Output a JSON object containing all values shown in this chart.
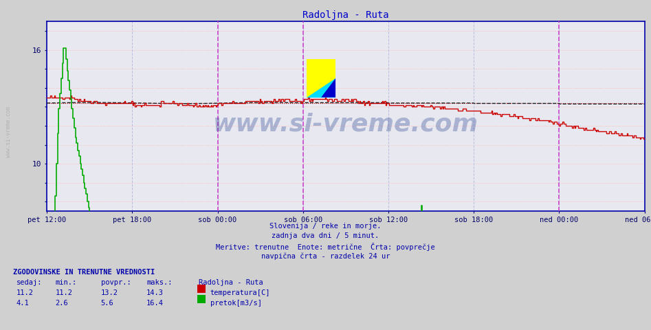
{
  "title": "Radoljna - Ruta",
  "title_color": "#0000cc",
  "bg_color": "#d0d0d0",
  "plot_bg_color": "#e8e8f0",
  "x_tick_labels": [
    "pet 12:00",
    "pet 18:00",
    "sob 00:00",
    "sob 06:00",
    "sob 12:00",
    "sob 18:00",
    "ned 00:00",
    "ned 06:00"
  ],
  "x_tick_positions": [
    0,
    6,
    12,
    18,
    24,
    30,
    36,
    42
  ],
  "ylim_min": 7.5,
  "ylim_max": 17.5,
  "y_ticks": [
    8,
    9,
    10,
    11,
    12,
    13,
    14,
    15,
    16,
    17
  ],
  "y_tick_labels": [
    "",
    "",
    "10",
    "",
    "",
    "",
    "",
    "",
    "16",
    ""
  ],
  "temp_color": "#cc0000",
  "flow_color": "#00aa00",
  "avg_color": "#222222",
  "grid_color_h": "#ffbbbb",
  "grid_color_v": "#bbbbdd",
  "midnight_color": "#cc44cc",
  "watermark_text": "www.si-vreme.com",
  "watermark_color": "#1a3a8a",
  "watermark_alpha": 0.3,
  "footer_lines": [
    "Slovenija / reke in morje.",
    "zadnja dva dni / 5 minut.",
    "Meritve: trenutne  Enote: metrične  Črta: povprečje",
    "navpična črta - razdelek 24 ur"
  ],
  "footer_color": "#0000aa",
  "legend_title": "ZGODOVINSKE IN TRENUTNE VREDNOSTI",
  "legend_headers": [
    "sedaj:",
    "min.:",
    "povpr.:",
    "maks.:"
  ],
  "legend_data": [
    [
      11.2,
      11.2,
      13.2,
      14.3,
      "temperatura[C]"
    ],
    [
      4.1,
      2.6,
      5.6,
      16.4,
      "pretok[m3/s]"
    ]
  ],
  "legend_station": "Radoljna - Ruta",
  "legend_color": "#0000aa",
  "temp_avg_val": 13.2,
  "flow_avg_val": 5.6,
  "temp_min_val": 11.2,
  "temp_max_val": 14.3,
  "flow_min_val": 2.6,
  "flow_max_val": 16.4,
  "side_watermark": "www.si-vreme.com"
}
